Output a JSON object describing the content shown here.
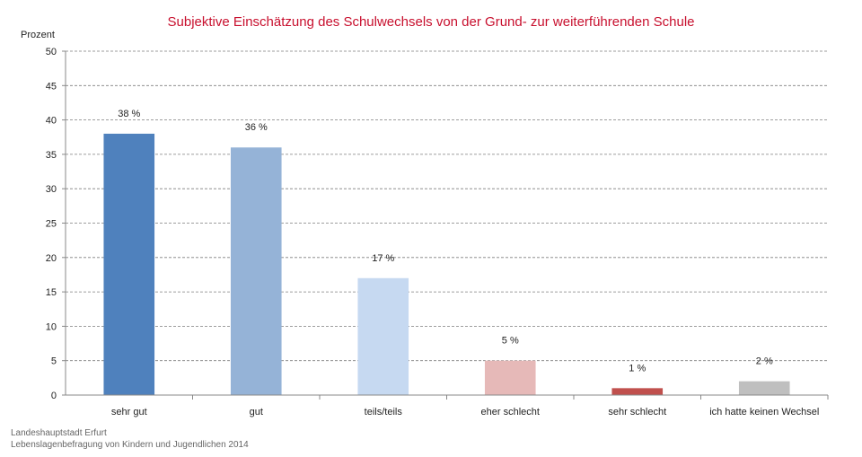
{
  "chart_data": {
    "type": "bar",
    "title": "Subjektive Einschätzung des Schulwechsels von der Grund- zur weiterführenden Schule",
    "ylabel": "Prozent",
    "xlabel": "",
    "ylim": [
      0,
      50
    ],
    "yticks": [
      0,
      5,
      10,
      15,
      20,
      25,
      30,
      35,
      40,
      45,
      50
    ],
    "grid": true,
    "categories": [
      "sehr gut",
      "gut",
      "teils/teils",
      "eher schlecht",
      "sehr schlecht",
      "ich hatte keinen Wechsel"
    ],
    "values": [
      38,
      36,
      17,
      5,
      1,
      2
    ],
    "data_labels": [
      "38 %",
      "36 %",
      "17 %",
      "5 %",
      "1 %",
      "2 %"
    ],
    "colors": [
      "#4f81bd",
      "#95b3d7",
      "#c6d9f1",
      "#e6b9b8",
      "#c0504d",
      "#bfbfbf"
    ]
  },
  "source": {
    "line1": "Landeshauptstadt Erfurt",
    "line2": "Lebenslagenbefragung von Kindern und Jugendlichen 2014"
  }
}
